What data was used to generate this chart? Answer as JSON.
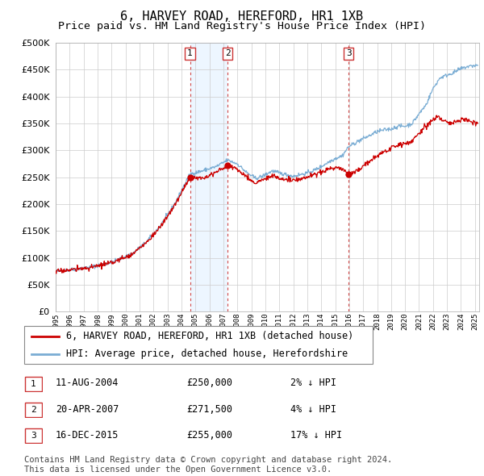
{
  "title": "6, HARVEY ROAD, HEREFORD, HR1 1XB",
  "subtitle": "Price paid vs. HM Land Registry's House Price Index (HPI)",
  "ylim": [
    0,
    500000
  ],
  "yticks": [
    0,
    50000,
    100000,
    150000,
    200000,
    250000,
    300000,
    350000,
    400000,
    450000,
    500000
  ],
  "xlim_start": 1995.0,
  "xlim_end": 2025.3,
  "legend_label_red": "6, HARVEY ROAD, HEREFORD, HR1 1XB (detached house)",
  "legend_label_blue": "HPI: Average price, detached house, Herefordshire",
  "purchases": [
    {
      "label": "1",
      "date": "11-AUG-2004",
      "x": 2004.61,
      "price": 250000,
      "pct": "2%",
      "dir": "↓"
    },
    {
      "label": "2",
      "date": "20-APR-2007",
      "x": 2007.3,
      "price": 271500,
      "pct": "4%",
      "dir": "↓"
    },
    {
      "label": "3",
      "date": "16-DEC-2015",
      "x": 2015.96,
      "price": 255000,
      "pct": "17%",
      "dir": "↓"
    }
  ],
  "footer": "Contains HM Land Registry data © Crown copyright and database right 2024.\nThis data is licensed under the Open Government Licence v3.0.",
  "red_color": "#cc0000",
  "blue_color": "#7aadd4",
  "blue_fill": "#ddeeff",
  "vline_color": "#cc3333",
  "grid_color": "#cccccc",
  "background_color": "#ffffff",
  "title_fontsize": 11,
  "subtitle_fontsize": 9.5,
  "legend_fontsize": 8.5,
  "footer_fontsize": 7.5
}
